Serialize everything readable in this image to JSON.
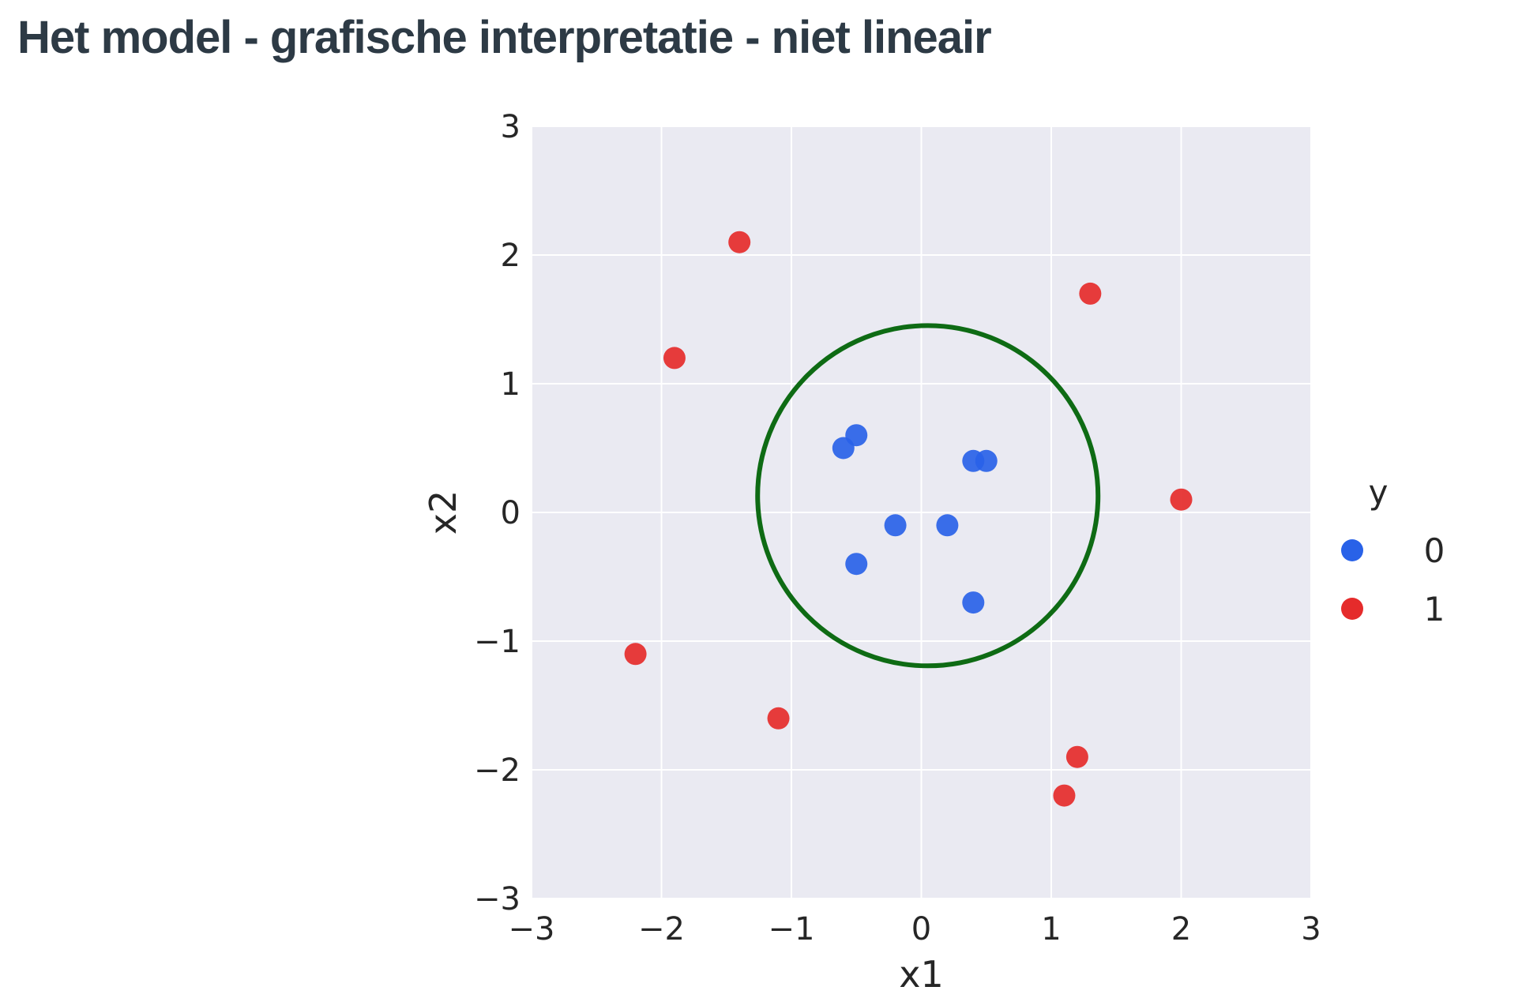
{
  "slide": {
    "title": "Het model - grafische interpretatie - niet lineair"
  },
  "chart_data": {
    "type": "scatter",
    "title": "",
    "xlabel": "x1",
    "ylabel": "x2",
    "xlim": [
      -3,
      3
    ],
    "ylim": [
      -3,
      3
    ],
    "xticks": [
      -3,
      -2,
      -1,
      0,
      1,
      2,
      3
    ],
    "yticks": [
      -3,
      -2,
      -1,
      0,
      1,
      2,
      3
    ],
    "xtick_labels": [
      "−3",
      "−2",
      "−1",
      "0",
      "1",
      "2",
      "3"
    ],
    "ytick_labels": [
      "−3",
      "−2",
      "−1",
      "0",
      "1",
      "2",
      "3"
    ],
    "grid": true,
    "background": "#eaeaf2",
    "grid_color": "#ffffff",
    "legend": {
      "title": "y",
      "placement": "right",
      "entries": [
        {
          "label": "0",
          "color": "#2962e8"
        },
        {
          "label": "1",
          "color": "#e52b2b"
        }
      ]
    },
    "series": [
      {
        "name": "0",
        "color": "#2962e8",
        "points": [
          [
            -0.6,
            0.5
          ],
          [
            -0.5,
            0.6
          ],
          [
            0.4,
            0.4
          ],
          [
            0.5,
            0.4
          ],
          [
            -0.2,
            -0.1
          ],
          [
            0.2,
            -0.1
          ],
          [
            -0.5,
            -0.4
          ],
          [
            0.4,
            -0.7
          ]
        ]
      },
      {
        "name": "1",
        "color": "#e52b2b",
        "points": [
          [
            -1.4,
            2.1
          ],
          [
            -1.9,
            1.2
          ],
          [
            1.3,
            1.7
          ],
          [
            2.0,
            0.1
          ],
          [
            -2.2,
            -1.1
          ],
          [
            -1.1,
            -1.6
          ],
          [
            1.2,
            -1.9
          ],
          [
            1.1,
            -2.2
          ]
        ]
      }
    ],
    "decision_boundary": {
      "shape": "circle",
      "center": [
        0.05,
        0.13
      ],
      "radius": 1.31,
      "color": "#0e6b14"
    }
  }
}
